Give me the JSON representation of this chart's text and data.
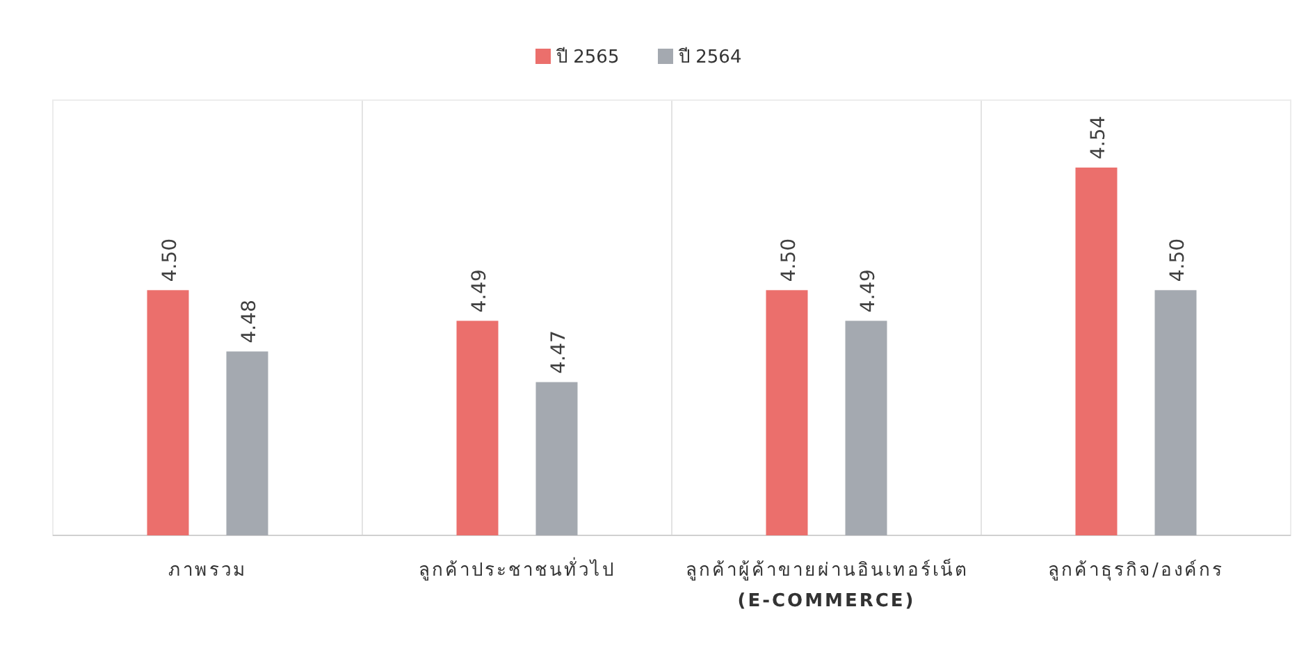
{
  "chart_data": {
    "type": "bar",
    "categories": [
      "ภาพรวม",
      "ลูกค้าประชาชนทั่วไป",
      "ลูกค้าผู้ค้าขายผ่านอินเทอร์เน็ต\n(E-COMMERCE)",
      "ลูกค้าธุรกิจ/องค์กร"
    ],
    "series": [
      {
        "name": "ปี 2565",
        "color": "#eb6f6c",
        "values": [
          4.5,
          4.49,
          4.5,
          4.54
        ],
        "value_labels": [
          "4.50",
          "4.49",
          "4.50",
          "4.54"
        ]
      },
      {
        "name": "ปี 2564",
        "color": "#a4a9b0",
        "values": [
          4.48,
          4.47,
          4.49,
          4.5
        ],
        "value_labels": [
          "4.48",
          "4.47",
          "4.49",
          "4.50"
        ]
      }
    ],
    "ylim": [
      4.42,
      4.562
    ],
    "grid": "x",
    "legend": "top"
  }
}
